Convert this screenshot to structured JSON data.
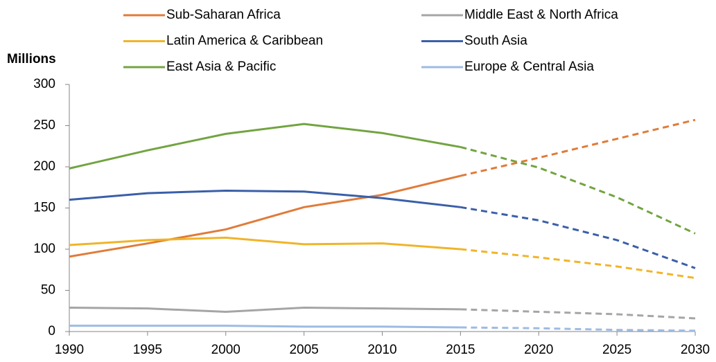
{
  "chart_data": {
    "type": "line",
    "y_axis_label": "Millions",
    "x": [
      1990,
      1995,
      2000,
      2005,
      2010,
      2015,
      2020,
      2025,
      2030
    ],
    "dashed_from": 2015,
    "series": [
      {
        "name": "Sub-Saharan Africa",
        "color": "#e07b39",
        "values": [
          91,
          107,
          124,
          151,
          166,
          189,
          211,
          234,
          257
        ]
      },
      {
        "name": "Middle East & North Africa",
        "color": "#a5a5a5",
        "values": [
          29,
          28,
          24,
          29,
          28,
          27,
          24,
          21,
          16
        ]
      },
      {
        "name": "Latin America & Caribbean",
        "color": "#f0b429",
        "values": [
          105,
          111,
          114,
          106,
          107,
          100,
          90,
          79,
          65
        ]
      },
      {
        "name": "South Asia",
        "color": "#3a5fa8",
        "values": [
          160,
          168,
          171,
          170,
          162,
          151,
          135,
          111,
          77
        ]
      },
      {
        "name": "East Asia & Pacific",
        "color": "#72a441",
        "values": [
          198,
          220,
          240,
          252,
          241,
          224,
          199,
          163,
          119
        ]
      },
      {
        "name": "Europe & Central Asia",
        "color": "#9dbbe3",
        "values": [
          7,
          7,
          7,
          6,
          6,
          5,
          4,
          2,
          1
        ]
      }
    ],
    "xlim": [
      1990,
      2030
    ],
    "xticks": [
      1990,
      1995,
      2000,
      2005,
      2010,
      2015,
      2020,
      2025,
      2030
    ],
    "ylim": [
      0,
      300
    ],
    "yticks": [
      0,
      50,
      100,
      150,
      200,
      250,
      300
    ],
    "grid": false
  }
}
